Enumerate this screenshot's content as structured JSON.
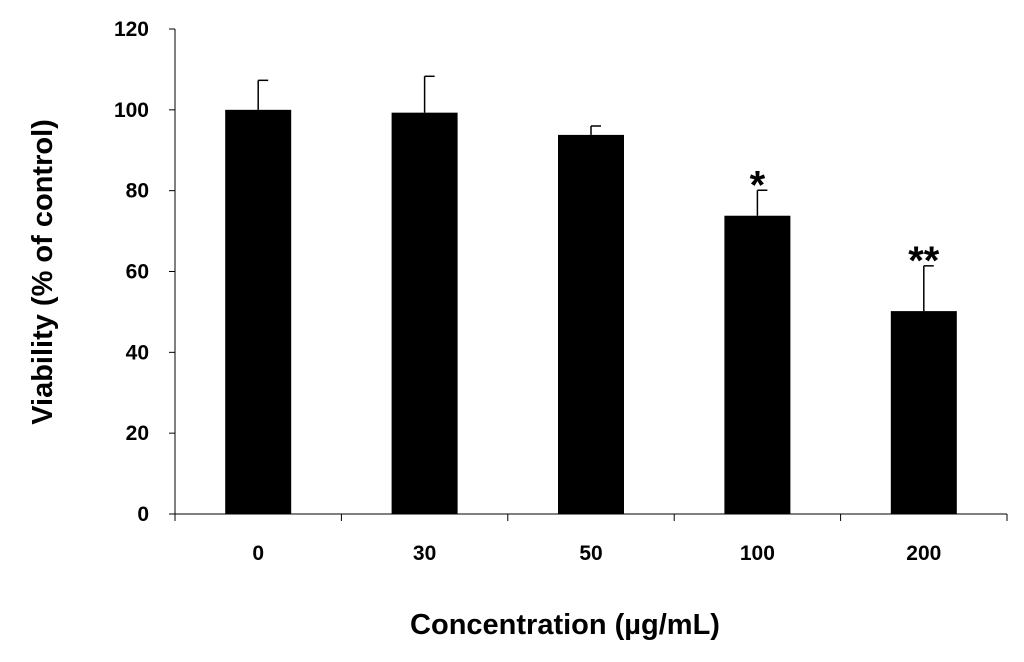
{
  "chart_data": {
    "type": "bar",
    "categories": [
      "0",
      "30",
      "50",
      "100",
      "200"
    ],
    "values": [
      100,
      99.3,
      93.8,
      73.8,
      50.2
    ],
    "error_upper": [
      107.3,
      108.3,
      96.0,
      80.1,
      61.4
    ],
    "significance": [
      "",
      "",
      "",
      "*",
      "**"
    ],
    "xlabel": "Concentration (µg/mL)",
    "ylabel": "Viability (% of control)",
    "ylim": [
      0,
      120
    ],
    "yticks": [
      0,
      20,
      40,
      60,
      80,
      100,
      120
    ],
    "grid": false,
    "legend": "none",
    "bar_color": "#000000"
  }
}
